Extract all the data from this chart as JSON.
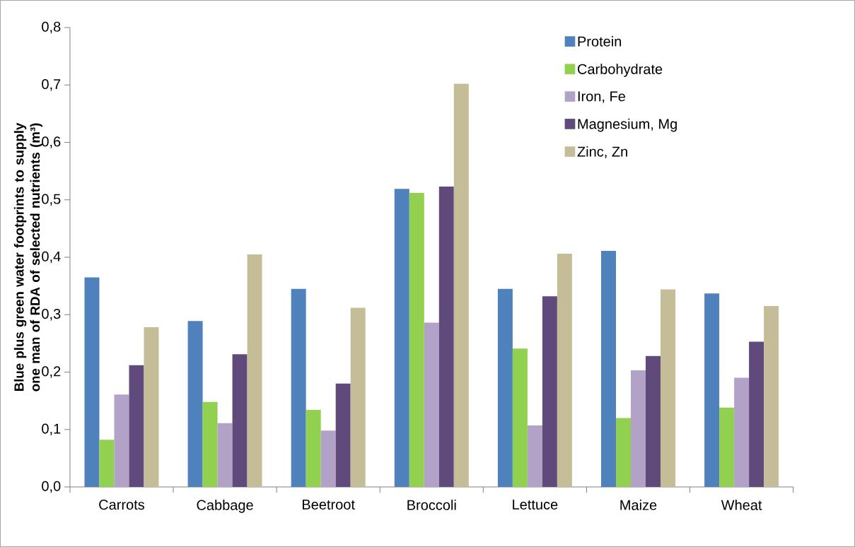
{
  "chart_data": {
    "type": "bar",
    "ylabel": "Blue plus green water footprints to supply one man of RDA of selected nutrients (m³)",
    "categories": [
      "Carrots",
      "Cabbage",
      "Beetroot",
      "Broccoli",
      "Lettuce",
      "Maize",
      "Wheat"
    ],
    "series": [
      {
        "name": "Protein",
        "color": "#4f81bd",
        "values": [
          0.365,
          0.289,
          0.345,
          0.519,
          0.345,
          0.411,
          0.337
        ]
      },
      {
        "name": "Carbohydrate",
        "color": "#92d050",
        "values": [
          0.082,
          0.148,
          0.134,
          0.512,
          0.241,
          0.12,
          0.138
        ]
      },
      {
        "name": "Iron, Fe",
        "color": "#b3a2c7",
        "values": [
          0.161,
          0.111,
          0.098,
          0.286,
          0.107,
          0.203,
          0.19
        ]
      },
      {
        "name": "Magnesium, Mg",
        "color": "#604a7b",
        "values": [
          0.212,
          0.231,
          0.18,
          0.523,
          0.332,
          0.228,
          0.253
        ]
      },
      {
        "name": "Zinc, Zn",
        "color": "#c4bd97",
        "values": [
          0.278,
          0.405,
          0.312,
          0.702,
          0.406,
          0.344,
          0.315
        ]
      }
    ],
    "ylim": [
      0,
      0.8
    ],
    "yticks": [
      {
        "value": 0,
        "label": "0,0"
      },
      {
        "value": 0.1,
        "label": "0,1"
      },
      {
        "value": 0.2,
        "label": "0,2"
      },
      {
        "value": 0.3,
        "label": "0,3"
      },
      {
        "value": 0.4,
        "label": "0,4"
      },
      {
        "value": 0.5,
        "label": "0,5"
      },
      {
        "value": 0.6,
        "label": "0,6"
      },
      {
        "value": 0.7,
        "label": "0,7"
      },
      {
        "value": 0.8,
        "label": "0,8"
      }
    ],
    "grid": false,
    "legend": "top right"
  }
}
